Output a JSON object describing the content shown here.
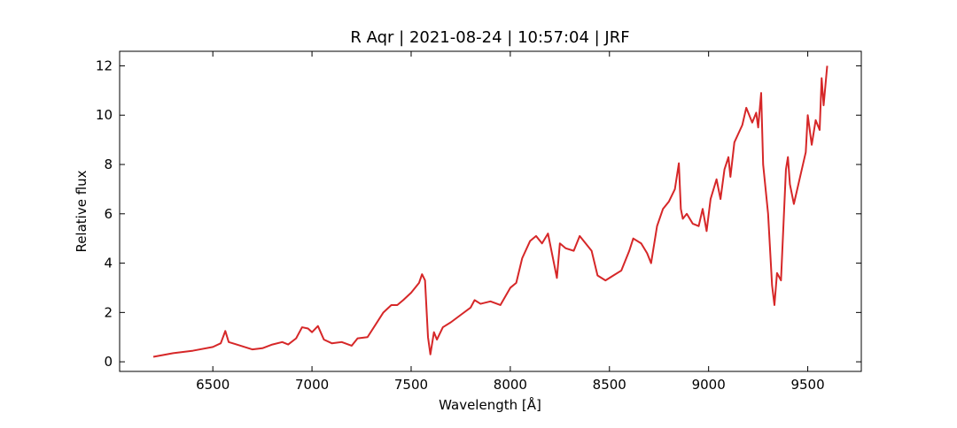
{
  "chart_data": {
    "type": "line",
    "title": "R Aqr | 2021-08-24 | 10:57:04 | JRF",
    "x_label": "Wavelength [Å]",
    "y_label": "Relative flux",
    "xlim": [
      6030,
      9770
    ],
    "ylim": [
      -0.39,
      12.59
    ],
    "xticks": [
      6500,
      7000,
      7500,
      8000,
      8500,
      9000,
      9500
    ],
    "yticks": [
      0,
      2,
      4,
      6,
      8,
      10,
      12
    ],
    "grid": false,
    "series": [
      {
        "name": "R Aqr",
        "color": "#d62728",
        "x": [
          6200,
          6300,
          6400,
          6500,
          6540,
          6563,
          6580,
          6620,
          6700,
          6750,
          6800,
          6850,
          6880,
          6920,
          6950,
          6980,
          7000,
          7030,
          7060,
          7100,
          7150,
          7200,
          7230,
          7280,
          7320,
          7360,
          7400,
          7430,
          7460,
          7500,
          7540,
          7555,
          7570,
          7585,
          7597,
          7615,
          7630,
          7660,
          7700,
          7750,
          7800,
          7820,
          7850,
          7900,
          7950,
          8000,
          8030,
          8060,
          8100,
          8130,
          8160,
          8190,
          8215,
          8235,
          8250,
          8280,
          8320,
          8350,
          8380,
          8410,
          8440,
          8480,
          8520,
          8560,
          8600,
          8620,
          8660,
          8690,
          8710,
          8740,
          8770,
          8800,
          8830,
          8850,
          8860,
          8870,
          8890,
          8920,
          8950,
          8970,
          8990,
          9010,
          9040,
          9060,
          9080,
          9100,
          9110,
          9130,
          9170,
          9190,
          9220,
          9240,
          9250,
          9265,
          9275,
          9300,
          9320,
          9332,
          9345,
          9365,
          9390,
          9400,
          9410,
          9430,
          9450,
          9470,
          9490,
          9500,
          9520,
          9540,
          9560,
          9570,
          9580,
          9598
        ],
        "values": [
          0.2,
          0.35,
          0.45,
          0.6,
          0.75,
          1.25,
          0.8,
          0.7,
          0.5,
          0.55,
          0.7,
          0.8,
          0.7,
          0.95,
          1.4,
          1.35,
          1.2,
          1.45,
          0.9,
          0.75,
          0.8,
          0.65,
          0.95,
          1.0,
          1.5,
          2.0,
          2.3,
          2.3,
          2.5,
          2.8,
          3.2,
          3.55,
          3.3,
          1.0,
          0.3,
          1.2,
          0.9,
          1.4,
          1.6,
          1.9,
          2.2,
          2.5,
          2.35,
          2.45,
          2.3,
          3.0,
          3.2,
          4.2,
          4.9,
          5.1,
          4.8,
          5.2,
          4.2,
          3.4,
          4.8,
          4.6,
          4.5,
          5.1,
          4.8,
          4.5,
          3.5,
          3.3,
          3.5,
          3.7,
          4.5,
          5.0,
          4.8,
          4.4,
          4.0,
          5.5,
          6.2,
          6.5,
          7.0,
          8.05,
          6.2,
          5.8,
          6.0,
          5.6,
          5.5,
          6.2,
          5.3,
          6.6,
          7.4,
          6.6,
          7.8,
          8.3,
          7.5,
          8.9,
          9.6,
          10.3,
          9.7,
          10.1,
          9.5,
          10.9,
          8.0,
          6.0,
          3.1,
          2.3,
          3.6,
          3.3,
          7.8,
          8.3,
          7.2,
          6.4,
          7.1,
          7.8,
          8.5,
          10.0,
          8.8,
          9.8,
          9.4,
          11.5,
          10.4,
          12.0
        ]
      }
    ]
  }
}
